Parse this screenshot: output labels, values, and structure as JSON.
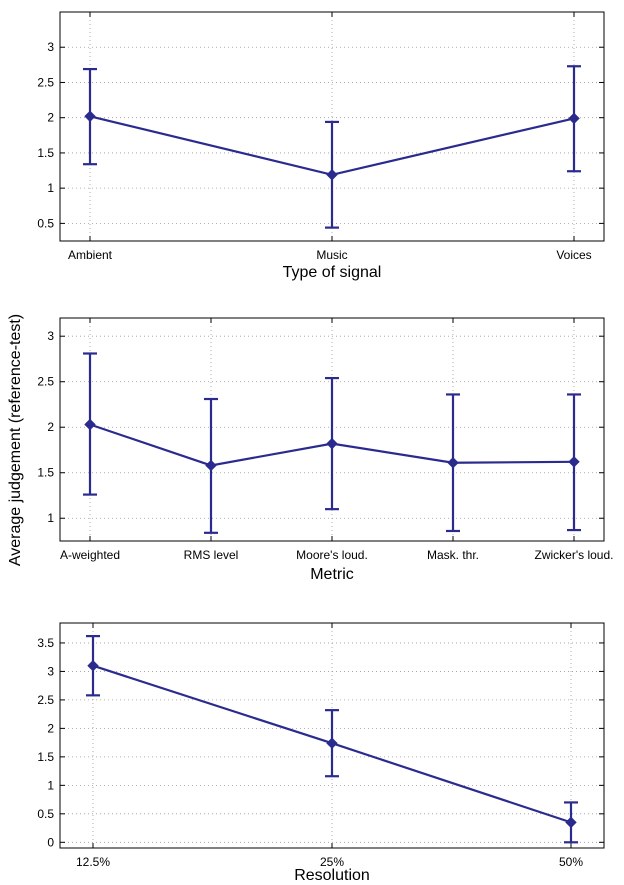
{
  "figure": {
    "shared_ylabel": "Average judgement (reference-test)"
  },
  "chart_data": [
    {
      "type": "line",
      "title": "",
      "xlabel": "Type of signal",
      "ylabel": "",
      "categories": [
        "Ambient",
        "Music",
        "Voices"
      ],
      "series": [
        {
          "values": [
            2.02,
            1.19,
            1.99
          ],
          "err_low": [
            1.34,
            0.44,
            1.24
          ],
          "err_high": [
            2.69,
            1.94,
            2.73
          ],
          "color": "#2b2b8f",
          "marker": "diamond"
        }
      ],
      "ylim": [
        0.25,
        3.5
      ],
      "yticks": [
        0.5,
        1,
        1.5,
        2,
        2.5,
        3
      ],
      "ytick_labels": [
        "0.5",
        "1",
        "1.5",
        "2",
        "2.5",
        "3"
      ],
      "grid": true
    },
    {
      "type": "line",
      "title": "",
      "xlabel": "Metric",
      "ylabel": "",
      "categories": [
        "A-weighted",
        "RMS level",
        "Moore's loud.",
        "Mask. thr.",
        "Zwicker's loud."
      ],
      "series": [
        {
          "values": [
            2.03,
            1.58,
            1.82,
            1.61,
            1.62
          ],
          "err_low": [
            1.26,
            0.84,
            1.1,
            0.86,
            0.87
          ],
          "err_high": [
            2.81,
            2.31,
            2.54,
            2.36,
            2.36
          ],
          "color": "#2b2b8f",
          "marker": "diamond"
        }
      ],
      "ylim": [
        0.75,
        3.2
      ],
      "yticks": [
        1,
        1.5,
        2,
        2.5,
        3
      ],
      "ytick_labels": [
        "1",
        "1.5",
        "2",
        "2.5",
        "3"
      ],
      "grid": true
    },
    {
      "type": "line",
      "title": "",
      "xlabel": "Resolution",
      "ylabel": "",
      "categories": [
        "12.5%",
        "25%",
        "50%"
      ],
      "series": [
        {
          "values": [
            3.1,
            1.74,
            0.35
          ],
          "err_low": [
            2.58,
            1.16,
            0.0
          ],
          "err_high": [
            3.62,
            2.32,
            0.7
          ],
          "color": "#2b2b8f",
          "marker": "diamond"
        }
      ],
      "ylim": [
        -0.1,
        3.85
      ],
      "yticks": [
        0,
        0.5,
        1,
        1.5,
        2,
        2.5,
        3,
        3.5
      ],
      "ytick_labels": [
        "0",
        "0.5",
        "1",
        "1.5",
        "2",
        "2.5",
        "3",
        "3.5"
      ],
      "grid": true
    }
  ]
}
